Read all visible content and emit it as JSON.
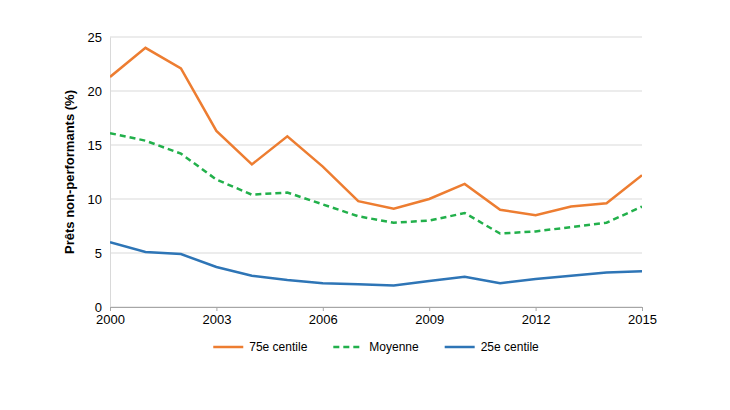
{
  "chart_data": {
    "type": "line",
    "y_label": "Prêts non-performants (%)",
    "x": [
      2000,
      2001,
      2002,
      2003,
      2004,
      2005,
      2006,
      2007,
      2008,
      2009,
      2010,
      2011,
      2012,
      2013,
      2014,
      2015
    ],
    "xlim": [
      2000,
      2015
    ],
    "xticks": [
      2000,
      2003,
      2006,
      2009,
      2012,
      2015
    ],
    "ylim": [
      0,
      25
    ],
    "yticks": [
      0,
      5,
      10,
      15,
      20,
      25
    ],
    "grid": true,
    "legend": "bottom",
    "series": [
      {
        "name": "75e centile",
        "color": "#ed7d31",
        "line_style": "solid",
        "values": [
          21.3,
          24.0,
          22.1,
          16.3,
          13.2,
          15.8,
          13.0,
          9.8,
          9.1,
          10.0,
          11.4,
          9.0,
          8.5,
          9.3,
          9.6,
          12.2
        ]
      },
      {
        "name": "Moyenne",
        "color": "#22b04b",
        "line_style": "dashed",
        "values": [
          16.1,
          15.4,
          14.2,
          11.8,
          10.4,
          10.6,
          9.5,
          8.4,
          7.8,
          8.0,
          8.7,
          6.8,
          7.0,
          7.4,
          7.8,
          9.3
        ]
      },
      {
        "name": "25e centile",
        "color": "#2e75b6",
        "line_style": "solid",
        "values": [
          6.0,
          5.1,
          4.9,
          3.7,
          2.9,
          2.5,
          2.2,
          2.1,
          2.0,
          2.4,
          2.8,
          2.2,
          2.6,
          2.9,
          3.2,
          3.3
        ]
      }
    ]
  }
}
